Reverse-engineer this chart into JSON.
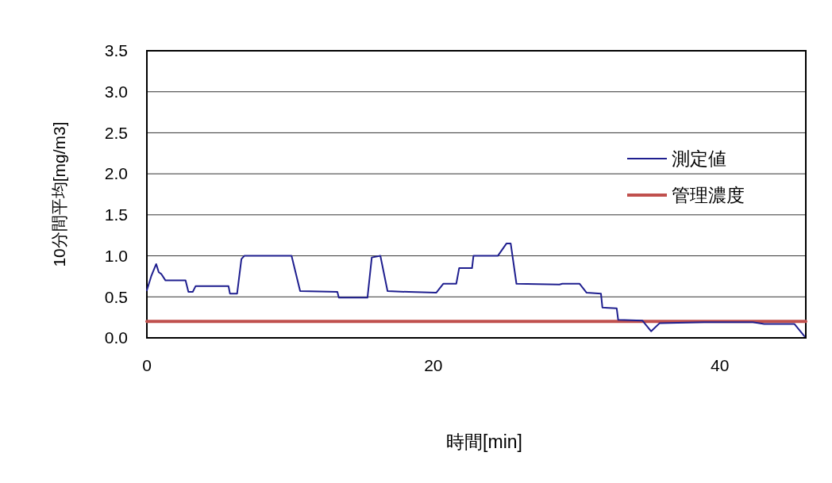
{
  "chart_data": {
    "type": "line",
    "xlabel": "時間[min]",
    "ylabel": "10分間平均[mg/m3]",
    "xlim": [
      0,
      46
    ],
    "xticks": [
      0,
      20,
      40
    ],
    "ylim": [
      0,
      3.5
    ],
    "yticks": [
      {
        "value": 0,
        "label": "0.0"
      },
      {
        "value": 0.5,
        "label": "0.5"
      },
      {
        "value": 1,
        "label": "1.0"
      },
      {
        "value": 1.5,
        "label": "1.5"
      },
      {
        "value": 2,
        "label": "2.0"
      },
      {
        "value": 2.5,
        "label": "2.5"
      },
      {
        "value": 3,
        "label": "3.0"
      },
      {
        "value": 3.5,
        "label": "3.5"
      }
    ],
    "grid": "y",
    "legend": "right",
    "series": [
      {
        "name": "測定値",
        "color": "#1f1f8f",
        "x": [
          0,
          0.3,
          0.65,
          0.83,
          1.0,
          1.3,
          2.7,
          2.9,
          3.2,
          3.4,
          5.7,
          5.8,
          6.3,
          6.6,
          6.8,
          10.1,
          10.7,
          13.3,
          13.4,
          15.4,
          15.7,
          16.3,
          16.8,
          18.3,
          20.2,
          20.7,
          21.6,
          21.8,
          22.7,
          22.8,
          24.5,
          25.1,
          25.4,
          25.8,
          28.8,
          29.0,
          30.2,
          30.7,
          31.7,
          31.8,
          32.8,
          32.9,
          34.6,
          35.2,
          35.8,
          38.9,
          42.3,
          43.1,
          45.2,
          45.9
        ],
        "values": [
          0.58,
          0.75,
          0.9,
          0.8,
          0.78,
          0.7,
          0.7,
          0.56,
          0.56,
          0.63,
          0.63,
          0.54,
          0.54,
          0.96,
          1.0,
          1.0,
          0.57,
          0.56,
          0.49,
          0.49,
          0.98,
          1.0,
          0.57,
          0.56,
          0.55,
          0.66,
          0.66,
          0.85,
          0.85,
          1.0,
          1.0,
          1.15,
          1.15,
          0.66,
          0.65,
          0.66,
          0.66,
          0.55,
          0.54,
          0.37,
          0.36,
          0.22,
          0.21,
          0.08,
          0.18,
          0.19,
          0.19,
          0.17,
          0.17,
          0.02
        ]
      },
      {
        "name": "管理濃度",
        "color": "#c0504d",
        "x": [
          0,
          46
        ],
        "values": [
          0.2,
          0.2
        ]
      }
    ]
  }
}
